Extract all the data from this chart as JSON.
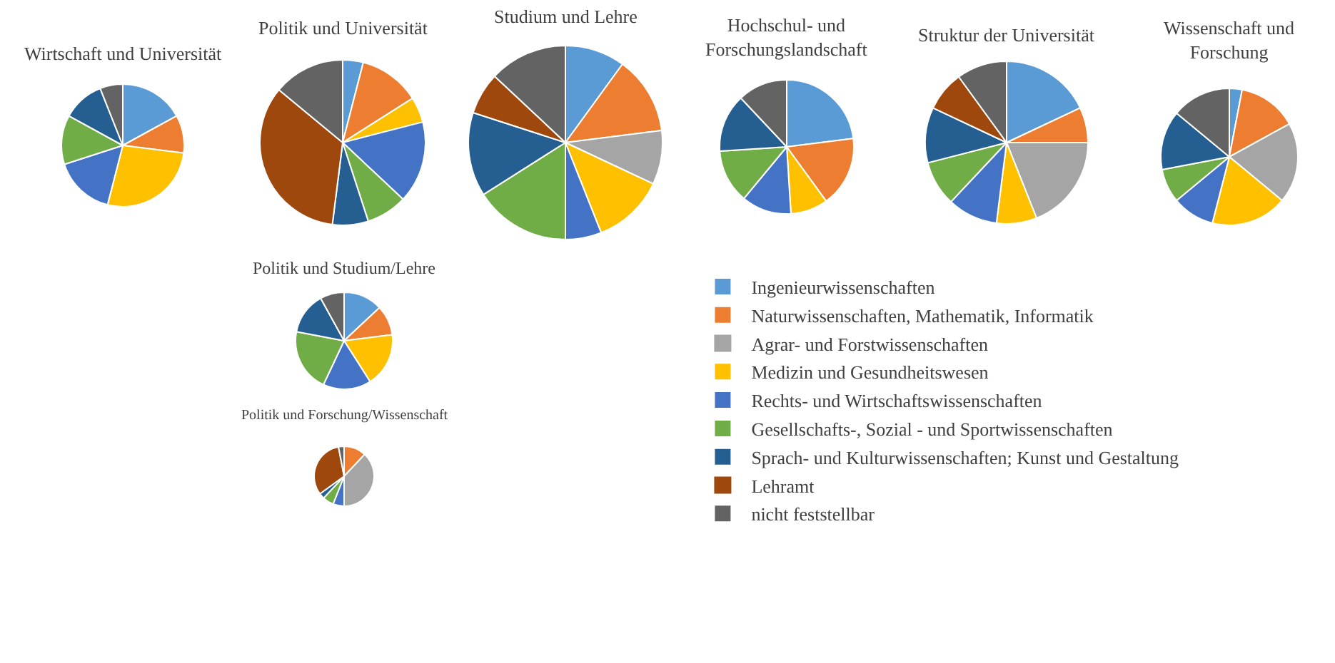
{
  "chart_data": [
    {
      "type": "pie",
      "title": "Wirtschaft und Universität",
      "legend": "bottom right",
      "categories": [
        "Ingenieurwissenschaften",
        "Naturwissenschaften, Mathematik, Informatik",
        "Agrar- und Forstwissenschaften",
        "Medizin und Gesundheitswesen",
        "Rechts- und Wirtschaftswissenschaften",
        "Gesellschafts-, Sozial - und Sportwissenschaften",
        "Sprach- und Kulturwissenschaften; Kunst und Gestaltung",
        "Lehramt",
        "nicht feststellbar"
      ],
      "values": [
        17,
        10,
        0,
        27,
        16,
        13,
        11,
        0,
        6
      ],
      "colors": [
        "#5b9bd5",
        "#ed7d31",
        "#a5a5a5",
        "#ffc000",
        "#4472c4",
        "#70ad47",
        "#255e91",
        "#9e480e",
        "#636363"
      ]
    },
    {
      "type": "pie",
      "title": "Politik und Universität",
      "categories": [
        null,
        null,
        null,
        null,
        null,
        null,
        null,
        null,
        null
      ],
      "values": [
        4,
        12,
        0,
        5,
        16,
        8,
        7,
        34,
        14
      ],
      "colors": [
        "#5b9bd5",
        "#ed7d31",
        "#a5a5a5",
        "#ffc000",
        "#4472c4",
        "#70ad47",
        "#255e91",
        "#9e480e",
        "#636363"
      ]
    },
    {
      "type": "pie",
      "title": "Studium und Lehre",
      "categories": [
        null,
        null,
        null,
        null,
        null,
        null,
        null,
        null,
        null
      ],
      "values": [
        10,
        13,
        9,
        12,
        6,
        16,
        14,
        7,
        13
      ],
      "colors": [
        "#5b9bd5",
        "#ed7d31",
        "#a5a5a5",
        "#ffc000",
        "#4472c4",
        "#70ad47",
        "#255e91",
        "#9e480e",
        "#636363"
      ]
    },
    {
      "type": "pie",
      "title": "Hochschul- und Forschungslandschaft",
      "categories": [
        null,
        null,
        null,
        null,
        null,
        null,
        null,
        null,
        null
      ],
      "values": [
        23,
        17,
        0,
        9,
        12,
        13,
        14,
        0,
        12
      ],
      "colors": [
        "#5b9bd5",
        "#ed7d31",
        "#a5a5a5",
        "#ffc000",
        "#4472c4",
        "#70ad47",
        "#255e91",
        "#9e480e",
        "#636363"
      ]
    },
    {
      "type": "pie",
      "title": "Struktur der Universität",
      "categories": [
        null,
        null,
        null,
        null,
        null,
        null,
        null,
        null,
        null
      ],
      "values": [
        18,
        7,
        19,
        8,
        10,
        9,
        11,
        8,
        10
      ],
      "colors": [
        "#5b9bd5",
        "#ed7d31",
        "#a5a5a5",
        "#ffc000",
        "#4472c4",
        "#70ad47",
        "#255e91",
        "#9e480e",
        "#636363"
      ]
    },
    {
      "type": "pie",
      "title": "Wissenschaft und Forschung",
      "categories": [
        null,
        null,
        null,
        null,
        null,
        null,
        null,
        null,
        null
      ],
      "values": [
        3,
        14,
        19,
        18,
        10,
        8,
        14,
        0,
        14
      ],
      "colors": [
        "#5b9bd5",
        "#ed7d31",
        "#a5a5a5",
        "#ffc000",
        "#4472c4",
        "#70ad47",
        "#255e91",
        "#9e480e",
        "#636363"
      ]
    },
    {
      "type": "pie",
      "title": "Politik und Studium/Lehre",
      "categories": [
        null,
        null,
        null,
        null,
        null,
        null,
        null,
        null,
        null
      ],
      "values": [
        13,
        10,
        0,
        18,
        16,
        21,
        14,
        0,
        8
      ],
      "colors": [
        "#5b9bd5",
        "#ed7d31",
        "#a5a5a5",
        "#ffc000",
        "#4472c4",
        "#70ad47",
        "#255e91",
        "#9e480e",
        "#636363"
      ]
    },
    {
      "type": "pie",
      "title": "Politik und Forschung/Wissenschaft",
      "categories": [
        null,
        null,
        null,
        null,
        null,
        null,
        null,
        null,
        null
      ],
      "values": [
        0,
        12,
        38,
        0,
        6,
        6,
        3,
        32,
        3
      ],
      "colors": [
        "#5b9bd5",
        "#ed7d31",
        "#a5a5a5",
        "#ffc000",
        "#4472c4",
        "#70ad47",
        "#255e91",
        "#9e480e",
        "#636363"
      ]
    }
  ]
}
